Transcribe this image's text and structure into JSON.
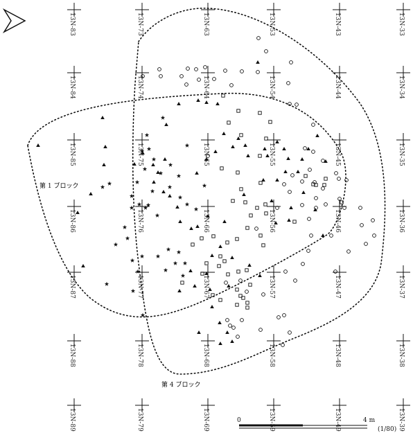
{
  "north_arrow": "north-arrow-icon",
  "grid_labels": [
    [
      "13N-83",
      "13N-73",
      "13N-63",
      "13N-53",
      "13N-43",
      "13N-33"
    ],
    [
      "13N-84",
      "13N-74",
      "13N-64",
      "13N-54",
      "13N-44",
      "13N-34"
    ],
    [
      "13N-85",
      "13N-75",
      "13N-65",
      "13N-55",
      "13N-45",
      "13N-35"
    ],
    [
      "13N-86",
      "13N-76",
      "13N-66",
      "13N-56",
      "13N-46",
      "13N-36"
    ],
    [
      "13N-87",
      "13N-77",
      "13N-67",
      "13N-57",
      "13N-47",
      "13N-37"
    ],
    [
      "13N-88",
      "13N-78",
      "13N-68",
      "13N-58",
      "13N-48",
      "13N-38"
    ],
    [
      "13N-89",
      "13N-79",
      "13N-69",
      "13N-59",
      "13N-49",
      "13N-39"
    ]
  ],
  "blocks": [
    {
      "label": "第 1 ブロック"
    },
    {
      "label": "第 4 ブロック"
    }
  ],
  "scale": {
    "start": "0",
    "end": "4 m",
    "ratio": "(1/80)"
  },
  "symbols": {
    "star": "star-symbol",
    "triangle": "triangle-symbol",
    "circle": "circle-symbol",
    "square": "square-symbol"
  }
}
